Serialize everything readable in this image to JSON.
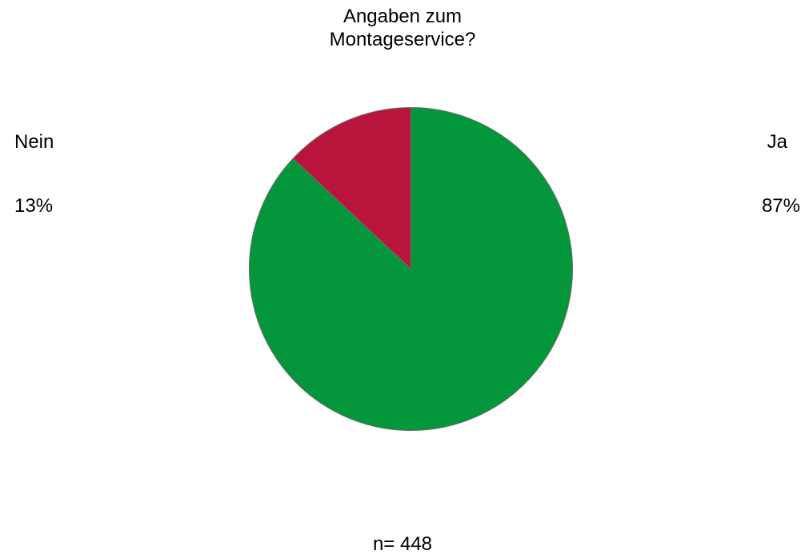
{
  "chart_data": {
    "type": "pie",
    "title_lines": [
      "Angaben zum",
      "Montageservice?"
    ],
    "slices": [
      {
        "label": "Ja",
        "value": 87,
        "value_label": "87%",
        "color": "#03963a"
      },
      {
        "label": "Nein",
        "value": 13,
        "value_label": "13%",
        "color": "#b9153c"
      }
    ],
    "slice_border_color": "#6e6e6e",
    "start_angle": "12 o'clock",
    "direction": "clockwise",
    "footnote": "n= 448"
  }
}
